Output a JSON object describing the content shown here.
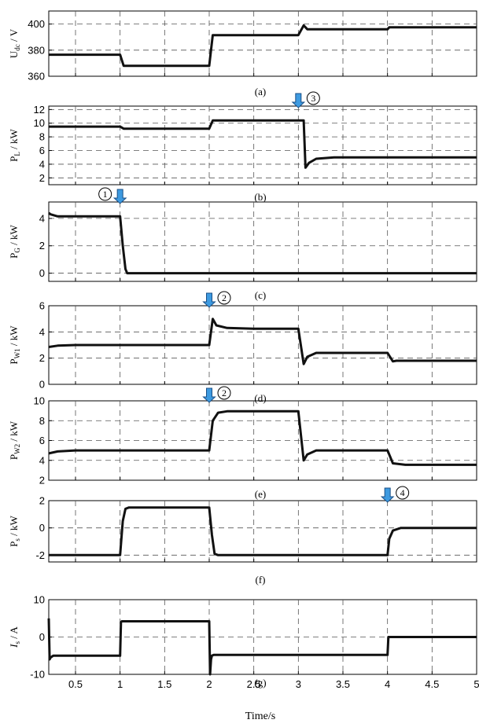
{
  "chart_data": [
    {
      "type": "line",
      "panel": "(a)",
      "ylabel": "U_dc / V",
      "ylabel_main": "U",
      "ylabel_sub": "dc",
      "ylabel_unit": " / V",
      "xlim": [
        0.2,
        5
      ],
      "ylim": [
        360,
        410
      ],
      "yticks": [
        360,
        380,
        400
      ],
      "x": [
        0.2,
        1.0,
        1.04,
        1.25,
        2.0,
        2.04,
        2.5,
        3.0,
        3.06,
        3.1,
        3.5,
        4.0,
        4.02,
        5.0
      ],
      "values": [
        376.5,
        376.5,
        368,
        368,
        368,
        391.5,
        391.5,
        391.5,
        399,
        396,
        396,
        396,
        397.5,
        397.5
      ]
    },
    {
      "type": "line",
      "panel": "(b)",
      "ylabel": "P_L / kW",
      "ylabel_main": "P",
      "ylabel_sub": "L",
      "ylabel_unit": " / kW",
      "xlim": [
        0.2,
        5
      ],
      "ylim": [
        1,
        12.5
      ],
      "yticks": [
        2,
        4,
        6,
        8,
        10,
        12
      ],
      "x": [
        0.2,
        1.0,
        1.04,
        2.0,
        2.04,
        3.0,
        3.06,
        3.08,
        3.12,
        3.2,
        3.4,
        5.0
      ],
      "values": [
        9.5,
        9.5,
        9.2,
        9.2,
        10.4,
        10.4,
        10.4,
        3.5,
        4.2,
        4.8,
        5.0,
        5.0
      ]
    },
    {
      "type": "line",
      "panel": "(c)",
      "ylabel": "P_G / kW",
      "ylabel_main": "P",
      "ylabel_sub": "G",
      "ylabel_unit": " / kW",
      "xlim": [
        0.2,
        5
      ],
      "ylim": [
        -0.6,
        5.2
      ],
      "yticks": [
        0,
        2,
        4
      ],
      "x": [
        0.2,
        0.22,
        0.3,
        1.0,
        1.03,
        1.06,
        1.08,
        5.0
      ],
      "values": [
        4.4,
        4.3,
        4.15,
        4.15,
        2.0,
        0.3,
        0.0,
        0.0
      ]
    },
    {
      "type": "line",
      "panel": "(d)",
      "ylabel": "P_W1 / kW",
      "ylabel_main": "P",
      "ylabel_sub": "W1",
      "ylabel_unit": " / kW",
      "xlim": [
        0.2,
        5
      ],
      "ylim": [
        0,
        6
      ],
      "yticks": [
        0,
        2,
        4,
        6
      ],
      "x": [
        0.2,
        0.3,
        0.5,
        1.0,
        2.0,
        2.04,
        2.08,
        2.2,
        2.5,
        3.0,
        3.06,
        3.1,
        3.2,
        3.5,
        4.0,
        4.06,
        4.1,
        5.0
      ],
      "values": [
        2.85,
        2.95,
        3.0,
        3.0,
        3.0,
        5.0,
        4.5,
        4.3,
        4.25,
        4.25,
        1.55,
        2.1,
        2.4,
        2.4,
        2.4,
        1.75,
        1.8,
        1.8
      ]
    },
    {
      "type": "line",
      "panel": "(e)",
      "ylabel": "P_W2 / kW",
      "ylabel_main": "P",
      "ylabel_sub": "W2",
      "ylabel_unit": " / kW",
      "xlim": [
        0.2,
        5
      ],
      "ylim": [
        2,
        10
      ],
      "yticks": [
        2,
        4,
        6,
        8,
        10
      ],
      "x": [
        0.2,
        0.3,
        0.5,
        2.0,
        2.04,
        2.1,
        2.2,
        3.0,
        3.06,
        3.1,
        3.2,
        3.5,
        4.0,
        4.06,
        4.2,
        5.0
      ],
      "values": [
        4.7,
        4.9,
        5.0,
        5.0,
        8.0,
        8.8,
        8.95,
        8.95,
        4.0,
        4.6,
        5.0,
        5.0,
        5.0,
        3.7,
        3.55,
        3.55
      ]
    },
    {
      "type": "line",
      "panel": "(f)",
      "ylabel": "P_s / kW",
      "ylabel_main": "P",
      "ylabel_sub": "s",
      "ylabel_unit": " / kW",
      "xlim": [
        0.2,
        5
      ],
      "ylim": [
        -2.5,
        2
      ],
      "yticks": [
        -2,
        0,
        2
      ],
      "x": [
        0.2,
        1.0,
        1.03,
        1.06,
        1.1,
        2.0,
        2.03,
        2.06,
        2.1,
        4.0,
        4.02,
        4.06,
        4.15,
        5.0
      ],
      "values": [
        -2.0,
        -2.0,
        0.5,
        1.4,
        1.5,
        1.5,
        -0.5,
        -1.9,
        -2.0,
        -2.0,
        -0.8,
        -0.2,
        0.0,
        0.0
      ]
    },
    {
      "type": "line",
      "panel": "(g)",
      "ylabel": "I_s / A",
      "ylabel_main": "I",
      "ylabel_sub": "s",
      "ylabel_unit": " / A",
      "xlabel": "Time/s",
      "xlim": [
        0.2,
        5
      ],
      "ylim": [
        -10,
        10
      ],
      "yticks": [
        -10,
        0,
        10
      ],
      "xticks": [
        0.5,
        1,
        1.5,
        2,
        2.5,
        3,
        3.5,
        4,
        4.5,
        5
      ],
      "xtick_labels": [
        "0.5",
        "1",
        "1.5",
        "2",
        "2.5",
        "3",
        "3.5",
        "4",
        "4.5",
        "5"
      ],
      "x": [
        0.2,
        0.21,
        0.22,
        0.25,
        1.0,
        1.01,
        1.02,
        2.0,
        2.01,
        2.02,
        2.03,
        2.05,
        4.0,
        4.01,
        5.0
      ],
      "values": [
        5.0,
        -6.0,
        -5.5,
        -5.0,
        -5.0,
        4.0,
        4.2,
        4.2,
        -10.0,
        -6.0,
        -5.0,
        -4.8,
        -4.8,
        0.0,
        0.0
      ]
    }
  ],
  "annotations": [
    {
      "panel": 1,
      "label": "3",
      "x": 3.0,
      "side": "right"
    },
    {
      "panel": 2,
      "label": "1",
      "x": 1.0,
      "side": "left"
    },
    {
      "panel": 3,
      "label": "2",
      "x": 2.0,
      "side": "right"
    },
    {
      "panel": 4,
      "label": "2",
      "x": 2.0,
      "side": "right"
    },
    {
      "panel": 5,
      "label": "4",
      "x": 4.0,
      "side": "right"
    }
  ],
  "subcaptions": [
    "(a)",
    "(b)",
    "(c)",
    "(d)",
    "(e)",
    "(f)",
    "(g)"
  ],
  "xlabel": "Time/s",
  "colors": {
    "line": "#111111",
    "grid": "#555555",
    "arrow_fill": "#3d9ae0",
    "arrow_stroke": "#1a4f86"
  }
}
